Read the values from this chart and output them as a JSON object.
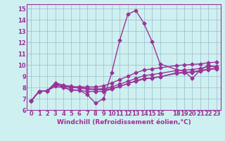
{
  "xlabel": "Windchill (Refroidissement éolien,°C)",
  "bg_color": "#cff0f0",
  "line_color": "#993399",
  "grid_color": "#99bbcc",
  "xlim": [
    -0.5,
    23.5
  ],
  "ylim": [
    6,
    15.4
  ],
  "xticks": [
    0,
    1,
    2,
    3,
    4,
    5,
    6,
    7,
    8,
    9,
    10,
    11,
    12,
    13,
    14,
    15,
    16,
    18,
    19,
    20,
    21,
    22,
    23
  ],
  "yticks": [
    6,
    7,
    8,
    9,
    10,
    11,
    12,
    13,
    14,
    15
  ],
  "lines": [
    [
      0,
      6.8,
      1,
      7.65,
      2,
      7.7,
      3,
      8.35,
      4,
      8.0,
      5,
      7.8,
      6,
      7.75,
      7,
      7.35,
      8,
      6.6,
      9,
      7.0,
      10,
      9.3,
      11,
      12.2,
      12,
      14.5,
      13,
      14.85,
      14,
      13.7,
      15,
      12.1,
      16,
      10.1,
      18,
      9.6,
      19,
      9.45,
      20,
      8.8,
      21,
      9.55,
      22,
      10.0,
      23,
      9.75
    ],
    [
      0,
      6.8,
      1,
      7.65,
      2,
      7.7,
      3,
      8.1,
      4,
      8.0,
      5,
      7.75,
      6,
      7.75,
      7,
      7.65,
      8,
      7.65,
      9,
      7.65,
      10,
      7.85,
      11,
      8.1,
      12,
      8.35,
      13,
      8.6,
      14,
      8.8,
      15,
      8.85,
      16,
      8.95,
      18,
      9.25,
      19,
      9.3,
      20,
      9.35,
      21,
      9.45,
      22,
      9.6,
      23,
      9.65
    ],
    [
      0,
      6.8,
      1,
      7.65,
      2,
      7.7,
      3,
      8.25,
      4,
      8.1,
      5,
      8.0,
      6,
      7.95,
      7,
      7.85,
      8,
      7.8,
      9,
      7.8,
      10,
      7.9,
      11,
      8.1,
      12,
      8.35,
      13,
      8.55,
      14,
      8.75,
      15,
      8.85,
      16,
      8.95,
      18,
      9.3,
      19,
      9.35,
      20,
      9.4,
      21,
      9.5,
      22,
      9.65,
      23,
      9.7
    ],
    [
      0,
      6.8,
      1,
      7.65,
      2,
      7.7,
      3,
      8.4,
      4,
      8.2,
      5,
      8.0,
      6,
      8.0,
      7,
      7.9,
      8,
      7.85,
      9,
      7.9,
      10,
      8.05,
      11,
      8.3,
      12,
      8.55,
      13,
      8.8,
      14,
      9.05,
      15,
      9.15,
      16,
      9.25,
      18,
      9.5,
      19,
      9.55,
      20,
      9.6,
      21,
      9.7,
      22,
      9.85,
      23,
      9.9
    ],
    [
      0,
      6.8,
      1,
      7.65,
      2,
      7.7,
      3,
      8.4,
      4,
      8.2,
      5,
      8.1,
      6,
      8.05,
      7,
      8.05,
      8,
      8.05,
      9,
      8.15,
      10,
      8.4,
      11,
      8.7,
      12,
      9.0,
      13,
      9.3,
      14,
      9.55,
      15,
      9.65,
      16,
      9.75,
      18,
      9.95,
      19,
      10.0,
      20,
      10.05,
      21,
      10.1,
      22,
      10.2,
      23,
      10.25
    ]
  ],
  "marker": "D",
  "markersize": 2.5,
  "linewidth": 1.0,
  "fontsize_ticks": 6,
  "fontsize_xlabel": 6.5
}
